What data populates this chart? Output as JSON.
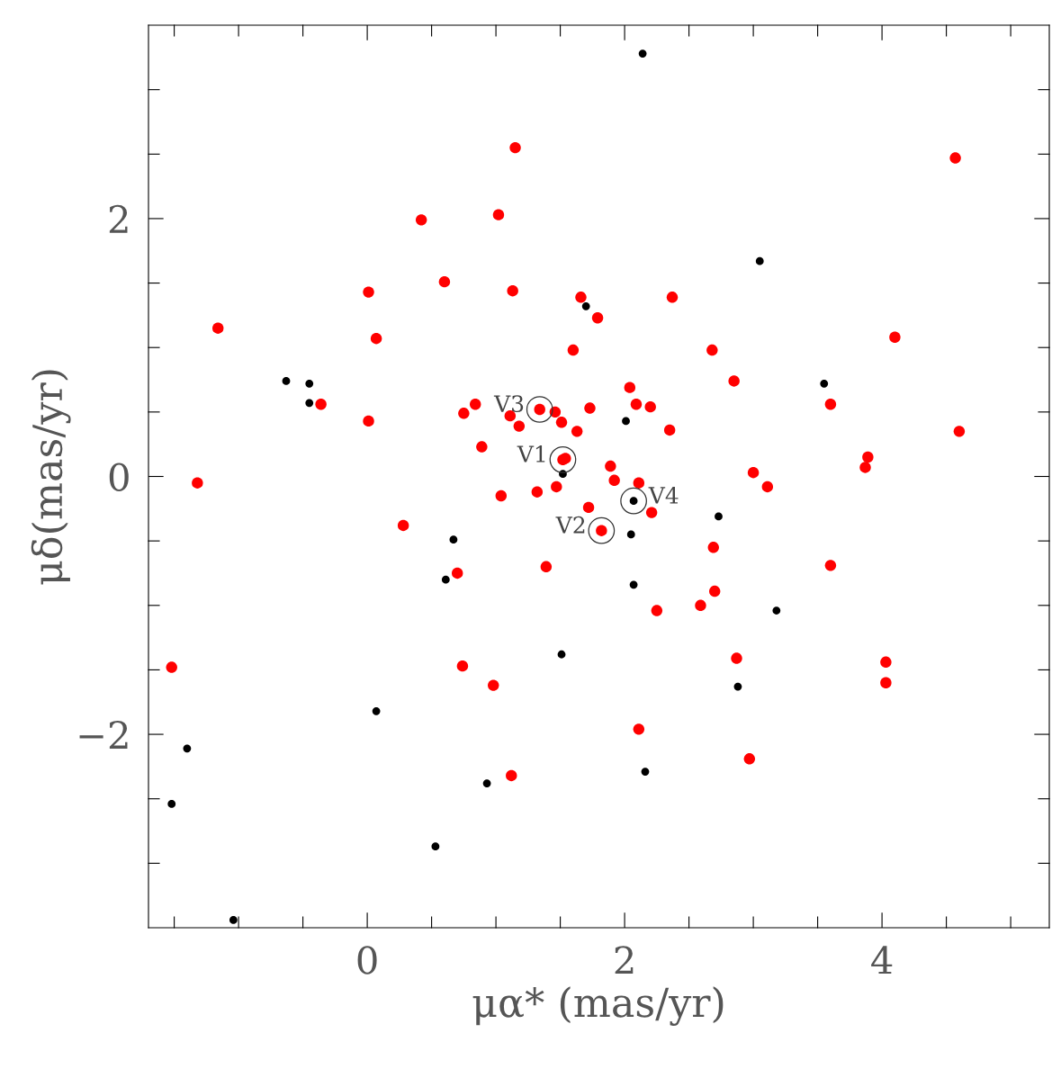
{
  "chart_data": {
    "type": "scatter",
    "xlabel": "μα* (mas/yr)",
    "ylabel": "μδ(mas/yr)",
    "xlim": [
      -1.7,
      5.3
    ],
    "ylim": [
      -3.5,
      3.5
    ],
    "xticks": [
      {
        "value": -1.5,
        "label": null
      },
      {
        "value": -1,
        "label": null
      },
      {
        "value": -0.5,
        "label": null
      },
      {
        "value": 0,
        "label": "0"
      },
      {
        "value": 0.5,
        "label": null
      },
      {
        "value": 1,
        "label": null
      },
      {
        "value": 1.5,
        "label": null
      },
      {
        "value": 2,
        "label": "2"
      },
      {
        "value": 2.5,
        "label": null
      },
      {
        "value": 3,
        "label": null
      },
      {
        "value": 3.5,
        "label": null
      },
      {
        "value": 4,
        "label": "4"
      },
      {
        "value": 4.5,
        "label": null
      },
      {
        "value": 5,
        "label": null
      }
    ],
    "yticks": [
      {
        "value": -3,
        "label": null
      },
      {
        "value": -2.5,
        "label": null
      },
      {
        "value": -2,
        "label": "−2"
      },
      {
        "value": -1.5,
        "label": null
      },
      {
        "value": -1,
        "label": null
      },
      {
        "value": -0.5,
        "label": null
      },
      {
        "value": 0,
        "label": "0"
      },
      {
        "value": 0.5,
        "label": null
      },
      {
        "value": 1,
        "label": null
      },
      {
        "value": 1.5,
        "label": null
      },
      {
        "value": 2,
        "label": "2"
      },
      {
        "value": 2.5,
        "label": null
      },
      {
        "value": 3,
        "label": null
      }
    ],
    "grid": false,
    "legend": false,
    "marker": "circle",
    "series": [
      {
        "color": "#000000",
        "x": [
          2.14,
          3.05,
          1.7,
          -0.63,
          -0.45,
          -0.45,
          3.55,
          2.01,
          1.52,
          2.07,
          2.73,
          0.67,
          2.05,
          0.61,
          2.07,
          3.18,
          1.51,
          2.88,
          0.07,
          -1.4,
          2.16,
          0.93,
          -1.52,
          0.53,
          -1.04
        ],
        "values": [
          3.28,
          1.67,
          1.32,
          0.74,
          0.72,
          0.57,
          0.72,
          0.43,
          0.02,
          -0.19,
          -0.31,
          -0.49,
          -0.45,
          -0.8,
          -0.84,
          -1.04,
          -1.38,
          -1.63,
          -1.82,
          -2.11,
          -2.29,
          -2.38,
          -2.54,
          -2.87,
          -3.44
        ]
      },
      {
        "color": "#ff0000",
        "x": [
          -1.16,
          -1.32,
          -1.52,
          -0.36,
          0.01,
          0.07,
          0.01,
          0.28,
          0.42,
          0.6,
          0.84,
          0.75,
          0.89,
          0.7,
          0.74,
          0.98,
          1.02,
          1.15,
          1.13,
          1.11,
          1.18,
          1.04,
          1.12,
          1.34,
          1.46,
          1.51,
          1.63,
          1.73,
          1.32,
          1.47,
          1.52,
          1.54,
          1.72,
          1.39,
          1.66,
          1.79,
          1.6,
          1.82,
          1.89,
          1.92,
          2.04,
          2.09,
          2.2,
          2.11,
          2.21,
          2.25,
          2.11,
          2.37,
          2.35,
          2.68,
          2.85,
          2.69,
          2.7,
          2.59,
          2.87,
          2.97,
          3.0,
          3.11,
          3.6,
          3.6,
          3.89,
          3.87,
          4.1,
          4.03,
          4.03,
          4.57,
          4.6
        ],
        "values": [
          1.15,
          -0.05,
          -1.48,
          0.56,
          1.43,
          1.07,
          0.43,
          -0.38,
          1.99,
          1.51,
          0.56,
          0.49,
          0.23,
          -0.75,
          -1.47,
          -1.62,
          2.03,
          2.55,
          1.44,
          0.47,
          0.39,
          -0.15,
          -2.32,
          0.52,
          0.5,
          0.42,
          0.35,
          0.53,
          -0.12,
          -0.08,
          0.13,
          0.14,
          -0.24,
          -0.7,
          1.39,
          1.23,
          0.98,
          -0.42,
          0.08,
          -0.03,
          0.69,
          0.56,
          0.54,
          -0.05,
          -0.28,
          -1.04,
          -1.96,
          1.39,
          0.36,
          0.98,
          0.74,
          -0.55,
          -0.89,
          -1.0,
          -1.41,
          -2.19,
          0.03,
          -0.08,
          0.56,
          -0.69,
          0.15,
          0.07,
          1.08,
          -1.44,
          -1.6,
          2.47,
          0.35
        ]
      }
    ],
    "annotations": [
      {
        "text": "V1",
        "x": 1.52,
        "y": 0.13
      },
      {
        "text": "V2",
        "x": 1.82,
        "y": -0.42
      },
      {
        "text": "V3",
        "x": 1.34,
        "y": 0.52
      },
      {
        "text": "V4",
        "x": 2.07,
        "y": -0.19
      }
    ]
  }
}
